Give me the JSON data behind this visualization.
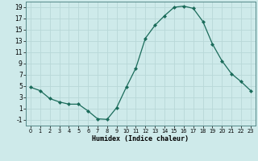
{
  "x": [
    0,
    1,
    2,
    3,
    4,
    5,
    6,
    7,
    8,
    9,
    10,
    11,
    12,
    13,
    14,
    15,
    16,
    17,
    18,
    19,
    20,
    21,
    22,
    23
  ],
  "y": [
    4.8,
    4.2,
    2.8,
    2.2,
    1.8,
    1.8,
    0.6,
    -0.8,
    -0.9,
    1.2,
    4.8,
    8.2,
    13.5,
    15.8,
    17.5,
    19.0,
    19.2,
    18.8,
    16.5,
    12.5,
    9.5,
    7.2,
    5.8,
    4.2
  ],
  "xlabel": "Humidex (Indice chaleur)",
  "bg_color": "#ceeaea",
  "grid_color": "#b8d8d8",
  "line_color": "#1a6b5a",
  "marker_color": "#1a6b5a",
  "ylim": [
    -2,
    20
  ],
  "xlim": [
    -0.5,
    23.5
  ],
  "yticks": [
    -1,
    1,
    3,
    5,
    7,
    9,
    11,
    13,
    15,
    17,
    19
  ],
  "xticks": [
    0,
    1,
    2,
    3,
    4,
    5,
    6,
    7,
    8,
    9,
    10,
    11,
    12,
    13,
    14,
    15,
    16,
    17,
    18,
    19,
    20,
    21,
    22,
    23
  ]
}
